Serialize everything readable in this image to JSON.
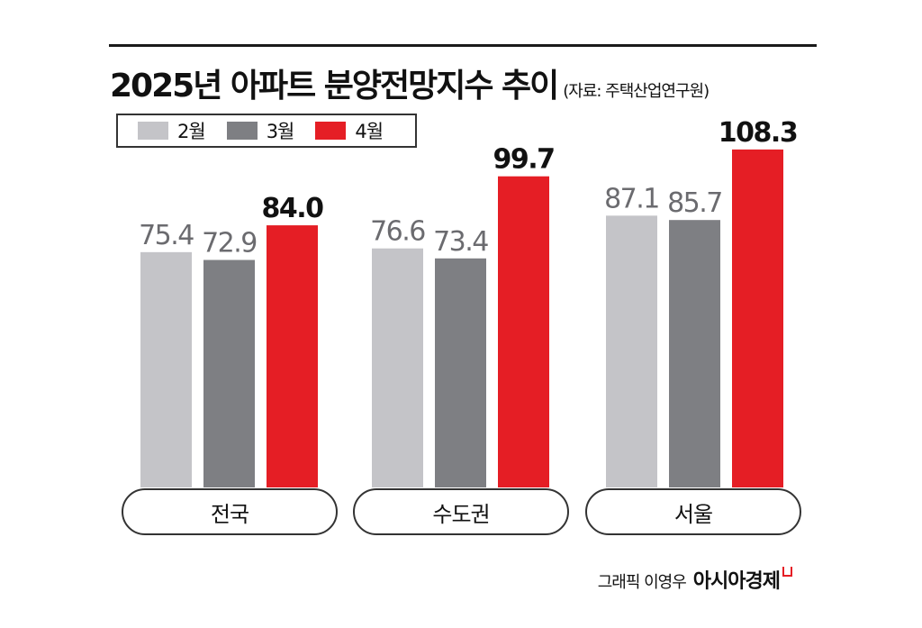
{
  "title": "2025년 아파트 분양전망지수 추이",
  "source": "(자료: 주택산업연구원)",
  "legend": [
    {
      "label": "2월",
      "color": "#c4c4c8"
    },
    {
      "label": "3월",
      "color": "#7e7f83"
    },
    {
      "label": "4월",
      "color": "#e51e25"
    }
  ],
  "chart_data": {
    "type": "bar",
    "categories": [
      "전국",
      "수도권",
      "서울"
    ],
    "series": [
      {
        "name": "2월",
        "values": [
          75.4,
          76.6,
          87.1
        ],
        "labels": [
          "75.4",
          "76.6",
          "87.1"
        ],
        "color": "#c4c4c8"
      },
      {
        "name": "3월",
        "values": [
          72.9,
          73.4,
          85.7
        ],
        "labels": [
          "72.9",
          "73.4",
          "85.7"
        ],
        "color": "#7e7f83"
      },
      {
        "name": "4월",
        "values": [
          84.0,
          99.7,
          108.3
        ],
        "labels": [
          "84.0",
          "99.7",
          "108.3"
        ],
        "color": "#e51e25"
      }
    ],
    "grid": false,
    "legend_position": "top-left"
  },
  "credit": {
    "author": "그래픽 이영우",
    "brand": "아시아경제"
  }
}
